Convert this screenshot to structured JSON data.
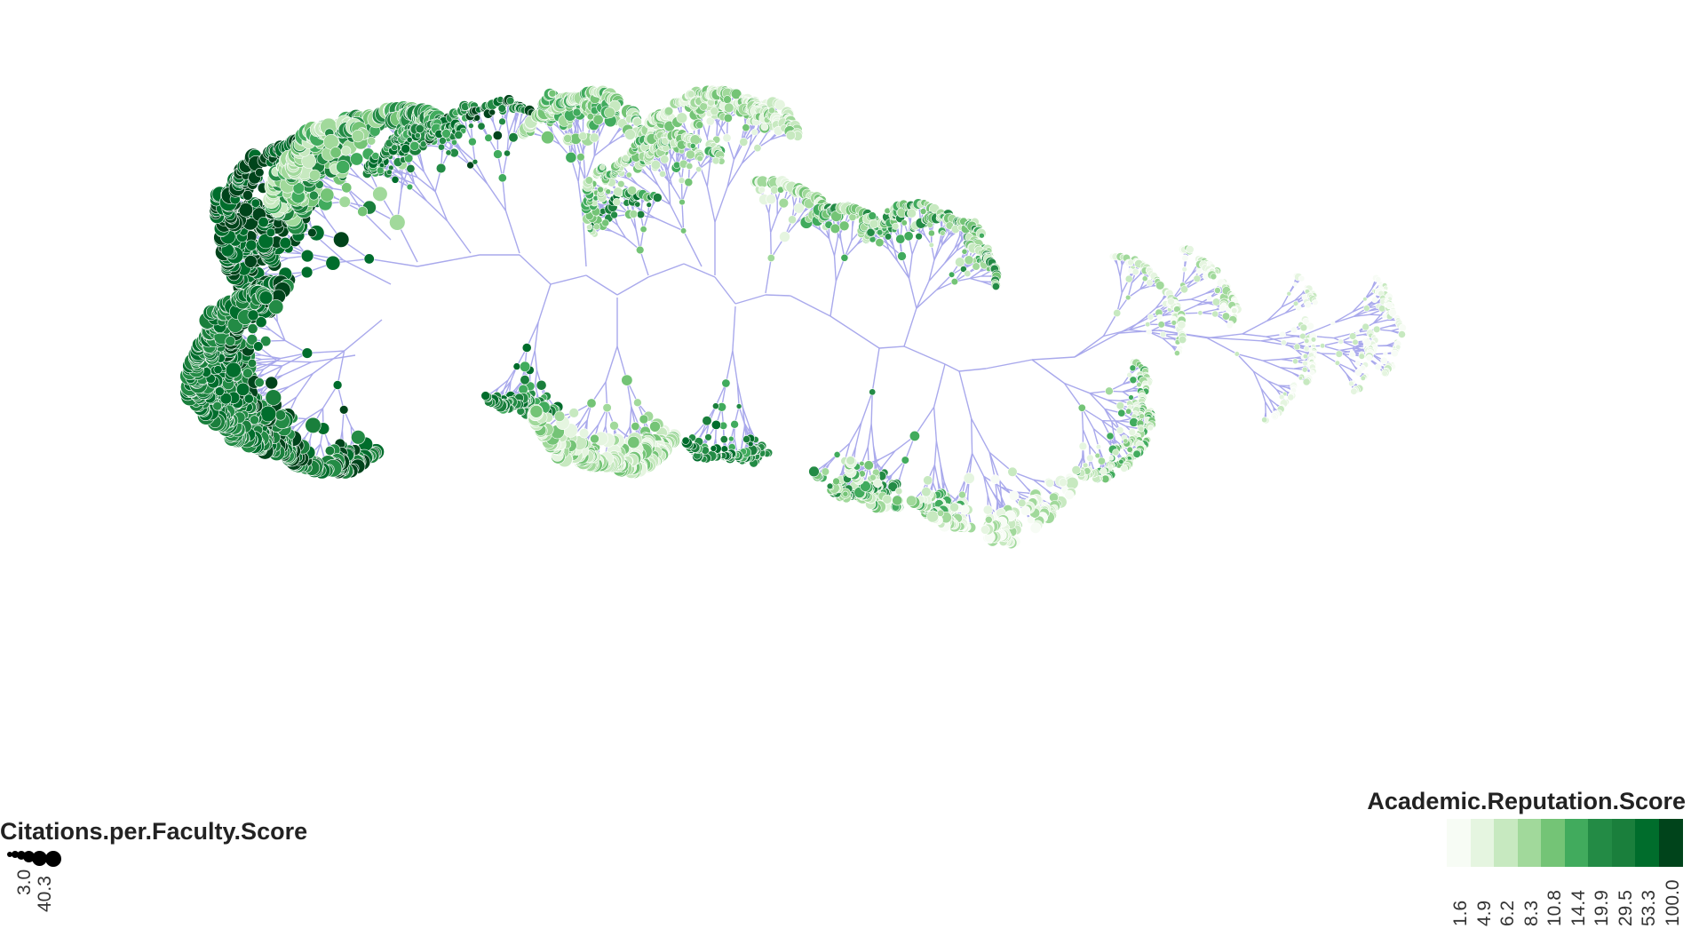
{
  "legends": {
    "size": {
      "title": "Citations.per.Faculty.Score",
      "labels": [
        "3.0",
        "40.3"
      ],
      "range": [
        3.0,
        40.3
      ]
    },
    "color": {
      "title": "Academic.Reputation.Score",
      "breaks": [
        "1.6",
        "4.9",
        "6.2",
        "8.3",
        "10.8",
        "14.4",
        "19.9",
        "29.5",
        "53.3",
        "100.0"
      ],
      "colors": [
        "#f7fcf5",
        "#e5f5e0",
        "#c7e9c0",
        "#a1d99b",
        "#74c476",
        "#41ab5d",
        "#238b45",
        "#1a7f3c",
        "#006d2c",
        "#00441b"
      ]
    }
  },
  "style": {
    "edge_color": "#a9a9ec",
    "node_stroke": "#ffffff",
    "background": "#ffffff"
  }
}
